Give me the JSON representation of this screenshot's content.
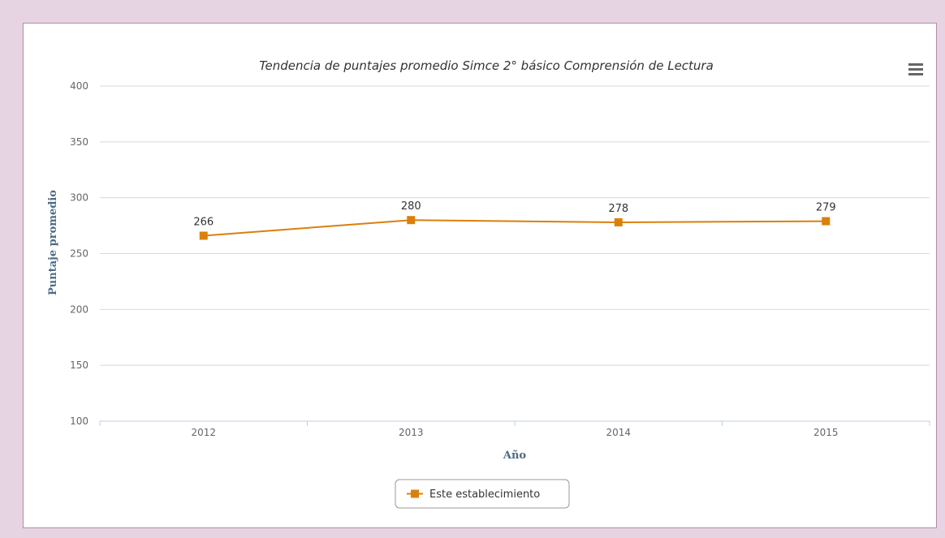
{
  "chart_data": {
    "type": "line",
    "title": "Tendencia de puntajes promedio Simce 2° básico Comprensión de Lectura",
    "xlabel": "Año",
    "ylabel": "Puntaje promedio",
    "categories": [
      "2012",
      "2013",
      "2014",
      "2015"
    ],
    "ylim": [
      100,
      400
    ],
    "yticks": [
      100,
      150,
      200,
      250,
      300,
      350,
      400
    ],
    "series": [
      {
        "name": "Este establecimiento",
        "values": [
          266,
          280,
          278,
          279
        ],
        "color": "#d9800b"
      }
    ],
    "grid": true,
    "legend": "bottom-center"
  },
  "menu_icon": "hamburger-menu-icon"
}
